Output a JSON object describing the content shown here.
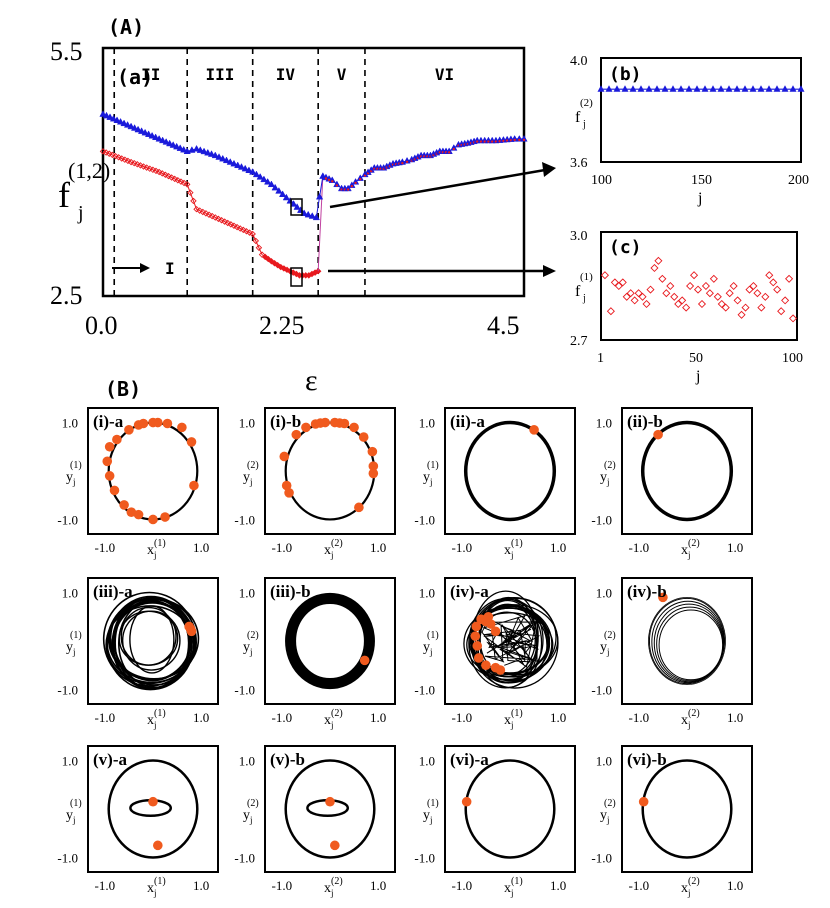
{
  "figure": {
    "label_A": "(A)",
    "label_B": "(B)"
  },
  "panel_a": {
    "label": "(a)",
    "ylabel": "f",
    "ylabel_sub": "j",
    "ylabel_sup": "(1,2)",
    "xlabel": "ε",
    "xlim": [
      0.0,
      4.5
    ],
    "ylim": [
      2.5,
      5.5
    ],
    "x_ticks": [
      "0.0",
      "2.25",
      "4.5"
    ],
    "y_ticks": [
      "2.5",
      "5.5"
    ],
    "regions": [
      "I",
      "II",
      "III",
      "IV",
      "V",
      "VI"
    ],
    "boundaries": [
      0.12,
      0.9,
      1.6,
      2.3,
      2.8
    ],
    "colors": {
      "upper": "#1a1adb",
      "lower": "#e8191e"
    },
    "series_upper_x": [
      0.0,
      0.3,
      0.6,
      0.9,
      1.0,
      1.2,
      1.4,
      1.6,
      1.8,
      2.0,
      2.15,
      2.28,
      2.35,
      2.45,
      2.55,
      2.62,
      2.7,
      2.8,
      2.9,
      3.0,
      3.1,
      3.2,
      3.3,
      3.4,
      3.5,
      3.6,
      3.7,
      3.8,
      3.9,
      4.0,
      4.2,
      4.4,
      4.5
    ],
    "series_upper_y": [
      4.7,
      4.55,
      4.4,
      4.25,
      4.28,
      4.2,
      4.1,
      4.0,
      3.85,
      3.65,
      3.5,
      3.45,
      3.95,
      3.9,
      3.8,
      3.8,
      3.88,
      3.97,
      4.05,
      4.05,
      4.1,
      4.12,
      4.15,
      4.2,
      4.2,
      4.25,
      4.25,
      4.33,
      4.35,
      4.38,
      4.38,
      4.4,
      4.4
    ],
    "series_lower_x": [
      0.0,
      0.3,
      0.6,
      0.9,
      1.0,
      1.2,
      1.4,
      1.6,
      1.7,
      1.8,
      1.9,
      2.0,
      2.1,
      2.2,
      2.3
    ],
    "series_lower_y": [
      4.25,
      4.12,
      4.0,
      3.85,
      3.55,
      3.45,
      3.35,
      3.25,
      3.0,
      2.92,
      2.85,
      2.8,
      2.75,
      2.75,
      2.8
    ],
    "arrow_I_label": "I"
  },
  "panel_b": {
    "label": "(b)",
    "ylabel": "f",
    "ylabel_sub": "j",
    "ylabel_sup": "(2)",
    "xlabel": "j",
    "xlim": [
      100,
      200
    ],
    "ylim": [
      3.6,
      4.0
    ],
    "x_ticks": [
      "100",
      "150",
      "200"
    ],
    "y_ticks": [
      "3.6",
      "4.0"
    ],
    "value": 3.88,
    "color": "#1a1adb"
  },
  "panel_c": {
    "label": "(c)",
    "ylabel": "f",
    "ylabel_sub": "j",
    "ylabel_sup": "(1)",
    "xlabel": "j",
    "xlim": [
      1,
      100
    ],
    "ylim": [
      2.7,
      3.0
    ],
    "x_ticks": [
      "1",
      "50",
      "100"
    ],
    "y_ticks": [
      "2.7",
      "3.0"
    ],
    "color": "#e8191e",
    "points_j": [
      3,
      6,
      8,
      10,
      12,
      14,
      16,
      18,
      20,
      22,
      24,
      26,
      28,
      30,
      32,
      34,
      36,
      38,
      40,
      42,
      44,
      46,
      48,
      50,
      52,
      54,
      56,
      58,
      60,
      62,
      64,
      66,
      68,
      70,
      72,
      74,
      76,
      78,
      80,
      82,
      84,
      86,
      88,
      90,
      92,
      94,
      96,
      98
    ],
    "points_f": [
      2.88,
      2.78,
      2.86,
      2.85,
      2.86,
      2.82,
      2.83,
      2.81,
      2.83,
      2.82,
      2.8,
      2.84,
      2.9,
      2.92,
      2.87,
      2.83,
      2.85,
      2.82,
      2.8,
      2.81,
      2.79,
      2.85,
      2.88,
      2.84,
      2.8,
      2.85,
      2.83,
      2.87,
      2.82,
      2.8,
      2.79,
      2.83,
      2.85,
      2.81,
      2.77,
      2.79,
      2.84,
      2.85,
      2.83,
      2.79,
      2.82,
      2.88,
      2.86,
      2.84,
      2.78,
      2.81,
      2.87,
      2.76
    ]
  },
  "panel_B": {
    "y_ticks": [
      "1.0",
      "-1.0"
    ],
    "x_ticks": [
      "-1.0",
      "1.0"
    ],
    "ylabel_base": "y",
    "xlabel_base": "x",
    "sub": "j",
    "marker_color": "#f05a1e",
    "subplots": [
      {
        "label": "(i)-a",
        "sup": "(1)",
        "style": "ring",
        "markers": [
          [
            -0.9,
            0.5
          ],
          [
            -0.95,
            0.2
          ],
          [
            -0.9,
            -0.1
          ],
          [
            -0.8,
            -0.4
          ],
          [
            -0.6,
            -0.7
          ],
          [
            -0.3,
            -0.9
          ],
          [
            0.0,
            -1.0
          ],
          [
            0.25,
            -0.95
          ],
          [
            0.6,
            0.9
          ],
          [
            0.3,
            0.98
          ],
          [
            0.1,
            1.0
          ],
          [
            0.0,
            1.0
          ],
          [
            -0.2,
            0.98
          ],
          [
            -0.5,
            0.85
          ],
          [
            -0.75,
            0.65
          ],
          [
            0.8,
            0.6
          ],
          [
            0.85,
            -0.3
          ],
          [
            -0.3,
            0.95
          ],
          [
            -0.45,
            -0.85
          ]
        ]
      },
      {
        "label": "(i)-b",
        "sup": "(2)",
        "style": "ring",
        "markers": [
          [
            -0.95,
            0.3
          ],
          [
            -0.9,
            -0.3
          ],
          [
            -0.7,
            0.75
          ],
          [
            -0.5,
            0.9
          ],
          [
            -0.3,
            0.97
          ],
          [
            -0.1,
            1.0
          ],
          [
            0.1,
            1.0
          ],
          [
            0.3,
            0.98
          ],
          [
            0.5,
            0.9
          ],
          [
            0.7,
            0.7
          ],
          [
            0.88,
            0.4
          ],
          [
            0.9,
            0.1
          ],
          [
            0.9,
            -0.05
          ],
          [
            0.6,
            -0.75
          ],
          [
            -0.85,
            -0.45
          ],
          [
            0.2,
            0.99
          ],
          [
            -0.2,
            0.99
          ]
        ]
      },
      {
        "label": "(ii)-a",
        "sup": "(1)",
        "style": "thick",
        "markers": [
          [
            0.5,
            0.85
          ]
        ]
      },
      {
        "label": "(ii)-b",
        "sup": "(2)",
        "style": "thick",
        "markers": [
          [
            -0.6,
            0.75
          ]
        ]
      },
      {
        "label": "(iii)-a",
        "sup": "(1)",
        "style": "tangle",
        "markers": [
          [
            0.75,
            0.3
          ],
          [
            0.8,
            0.2
          ],
          [
            0.78,
            0.25
          ]
        ]
      },
      {
        "label": "(iii)-b",
        "sup": "(2)",
        "style": "bundle",
        "markers": [
          [
            0.72,
            -0.4
          ]
        ]
      },
      {
        "label": "(iv)-a",
        "sup": "(1)",
        "style": "chaos",
        "markers": [
          [
            -0.7,
            0.3
          ],
          [
            -0.72,
            0.1
          ],
          [
            -0.68,
            -0.1
          ],
          [
            -0.6,
            0.45
          ],
          [
            -0.5,
            0.4
          ],
          [
            -0.4,
            0.35
          ],
          [
            -0.65,
            -0.35
          ],
          [
            -0.5,
            -0.5
          ],
          [
            -0.3,
            -0.55
          ],
          [
            -0.2,
            -0.6
          ],
          [
            -0.3,
            0.2
          ],
          [
            -0.45,
            0.5
          ]
        ]
      },
      {
        "label": "(iv)-b",
        "sup": "(2)",
        "style": "spiral",
        "markers": [
          [
            -0.5,
            0.9
          ]
        ]
      },
      {
        "label": "(v)-a",
        "sup": "(1)",
        "style": "double",
        "markers": [
          [
            0.0,
            0.15
          ],
          [
            0.1,
            -0.75
          ]
        ]
      },
      {
        "label": "(v)-b",
        "sup": "(2)",
        "style": "double",
        "markers": [
          [
            0.0,
            0.15
          ],
          [
            0.1,
            -0.75
          ]
        ]
      },
      {
        "label": "(vi)-a",
        "sup": "(1)",
        "style": "single",
        "markers": [
          [
            -0.9,
            0.15
          ]
        ]
      },
      {
        "label": "(vi)-b",
        "sup": "(2)",
        "style": "single",
        "markers": [
          [
            -0.9,
            0.15
          ]
        ]
      }
    ]
  }
}
